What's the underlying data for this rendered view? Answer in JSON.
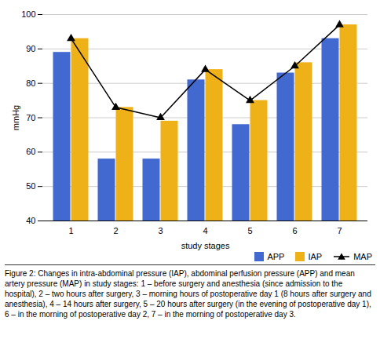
{
  "chart_data": {
    "type": "bar",
    "categories": [
      "1",
      "2",
      "3",
      "4",
      "5",
      "6",
      "7"
    ],
    "series": [
      {
        "name": "APP",
        "type": "bar",
        "values": [
          89,
          58,
          58,
          81,
          68,
          83,
          93
        ]
      },
      {
        "name": "IAP",
        "type": "bar",
        "values": [
          93,
          73,
          69,
          84,
          75,
          86,
          97
        ]
      },
      {
        "name": "MAP",
        "type": "line",
        "color": "black",
        "marker": "triangle",
        "values": [
          93,
          73,
          70,
          84,
          75,
          85,
          97
        ]
      }
    ],
    "xlabel": "study stages",
    "ylabel": "mmHg",
    "ylim": [
      40,
      100
    ],
    "yticks": [
      40,
      50,
      60,
      70,
      80,
      90,
      100
    ],
    "grid": true,
    "legend": "bottom",
    "caption": "Figure 2: Changes in intra-abdominal pressure (IAP), abdominal perfusion pressure (APP) and mean artery pressure (MAP) in study stages: 1 – before surgery and anesthesia (since admission to the hospital), 2 – two hours after surgery, 3 – morning hours of postoperative day 1 (8 hours after surgery and anesthesia), 4 – 14 hours after surgery, 5 – 20 hours after surgery (in the evening of postoperative day 1), 6 – in the morning of postoperative day 2, 7 – in the morning of postoperative day 3."
  }
}
